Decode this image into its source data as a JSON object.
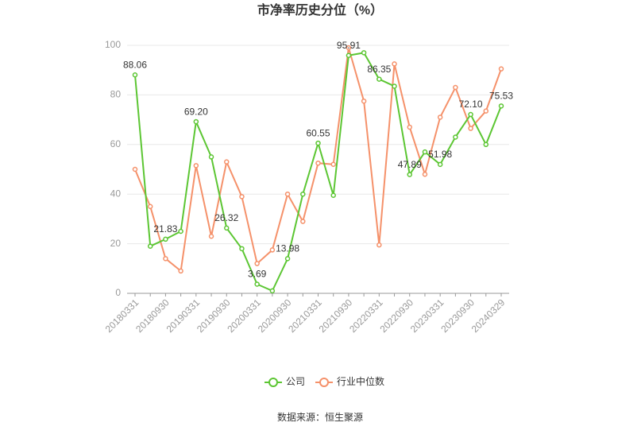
{
  "chart_data": {
    "type": "line",
    "title": "市净率历史分位（%）",
    "source": "数据来源：恒生聚源",
    "categories": [
      "20180331",
      null,
      "20180930",
      null,
      "20190331",
      null,
      "20190930",
      null,
      "20200331",
      null,
      "20200930",
      null,
      "20210331",
      null,
      "20210930",
      null,
      "20220331",
      null,
      "20220930",
      null,
      "20230331",
      null,
      "20230930",
      null,
      "20240329"
    ],
    "series": [
      {
        "name": "公司",
        "color": "#5cc633",
        "values": [
          88.06,
          19,
          21.83,
          25,
          69.2,
          55,
          26.32,
          18,
          3.69,
          1,
          13.98,
          40,
          60.55,
          39.5,
          95.91,
          97,
          86.35,
          83.5,
          47.89,
          57,
          51.98,
          63,
          72.1,
          60,
          75.53
        ],
        "value_labels": [
          "88.06",
          null,
          "21.83",
          null,
          "69.20",
          null,
          "26.32",
          null,
          "3.69",
          null,
          "13.98",
          null,
          "60.55",
          null,
          "95.91",
          null,
          "86.35",
          null,
          "47.89",
          null,
          "51.98",
          null,
          "72.10",
          null,
          "75.53"
        ]
      },
      {
        "name": "行业中位数",
        "color": "#f5916a",
        "values": [
          50,
          35,
          14,
          9,
          51.5,
          23,
          53,
          39,
          12,
          17.5,
          40,
          29,
          52.5,
          52,
          99,
          77.5,
          19.5,
          92.5,
          67,
          48,
          71,
          83,
          66.5,
          73.5,
          90.5
        ]
      }
    ],
    "ylim": [
      0,
      100
    ],
    "yticks": [
      0,
      20,
      40,
      60,
      80,
      100
    ],
    "grid": true,
    "legend": "bottom"
  }
}
